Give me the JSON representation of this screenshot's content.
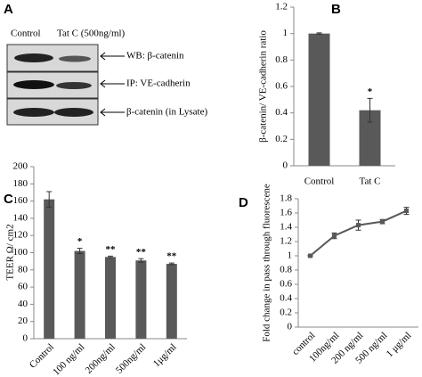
{
  "blot": {
    "panel_label": "A",
    "lanes": [
      "Control",
      "Tat C (500ng/ml)"
    ],
    "rows": [
      "WB:  β-catenin",
      "IP:  VE-cadherin",
      "β-catenin  (in Lysate)"
    ]
  },
  "chart_data": [
    {
      "type": "bar",
      "panel_label": "B",
      "y_label": "β-catenin/ VE-cadherin  ratio",
      "categories": [
        "Control",
        "Tat C"
      ],
      "values": [
        1.0,
        0.42
      ],
      "errors": [
        0.005,
        0.09
      ],
      "significance": [
        null,
        "*"
      ],
      "color": "#595959",
      "ylim": [
        0,
        1.2
      ],
      "yticks": [
        0,
        0.2,
        0.4,
        0.6,
        0.8,
        1,
        1.2
      ]
    },
    {
      "type": "bar",
      "panel_label": "C",
      "y_label": "TEER Ω/ cm2",
      "categories": [
        "Control",
        "100 ng/ml",
        "200ng/ml",
        "500ng/ml",
        "1μg/ml"
      ],
      "values": [
        162,
        102,
        95,
        91,
        87
      ],
      "errors": [
        9,
        3,
        1,
        2,
        1
      ],
      "significance": [
        null,
        "*",
        "**",
        "**",
        "**"
      ],
      "color": "#595959",
      "ylim": [
        0,
        200
      ],
      "yticks": [
        0,
        20,
        40,
        60,
        80,
        100,
        120,
        140,
        160,
        180,
        200
      ]
    },
    {
      "type": "line",
      "panel_label": "D",
      "y_label": "Fold change in pass through fluorescene",
      "categories": [
        "control",
        "100ng/ml",
        "200 ng/ml",
        "500 ng/ml",
        "1 μg/ml"
      ],
      "values": [
        1.0,
        1.28,
        1.43,
        1.48,
        1.63
      ],
      "errors": [
        0.01,
        0.04,
        0.07,
        0.03,
        0.05
      ],
      "color": "#595959",
      "ylim": [
        0,
        1.8
      ],
      "yticks": [
        0,
        0.2,
        0.4,
        0.6,
        0.8,
        1,
        1.2,
        1.4,
        1.6,
        1.8
      ]
    }
  ]
}
